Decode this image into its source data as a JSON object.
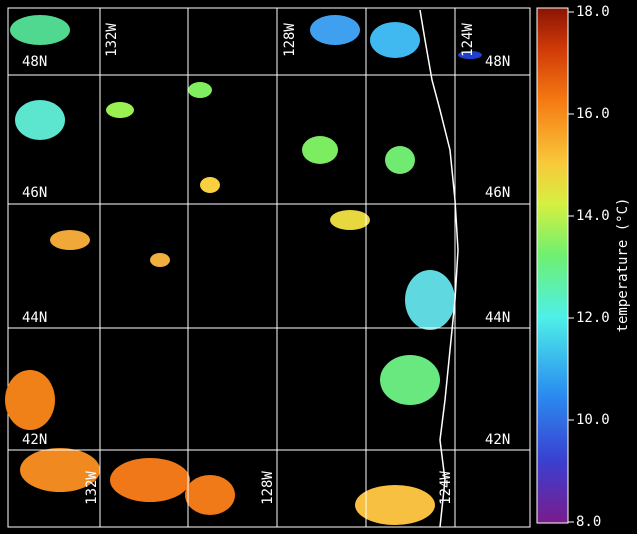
{
  "map": {
    "lat_labels_left": [
      "48N",
      "46N",
      "44N",
      "42N"
    ],
    "lat_labels_right": [
      "48N",
      "46N",
      "44N",
      "42N"
    ],
    "lon_labels_top": [
      "132W",
      "128W",
      "124W"
    ],
    "lon_labels_bottom": [
      "132W",
      "128W",
      "124W"
    ]
  },
  "colorbar": {
    "label": "temperature (°C)",
    "lim": [
      8,
      18
    ],
    "ticks": [
      {
        "value": 8,
        "label": "8.0"
      },
      {
        "value": 10,
        "label": "10.0"
      },
      {
        "value": 12,
        "label": "12.0"
      },
      {
        "value": 14,
        "label": "14.0"
      },
      {
        "value": 16,
        "label": "16.0"
      },
      {
        "value": 18,
        "label": "18.0"
      }
    ]
  }
}
